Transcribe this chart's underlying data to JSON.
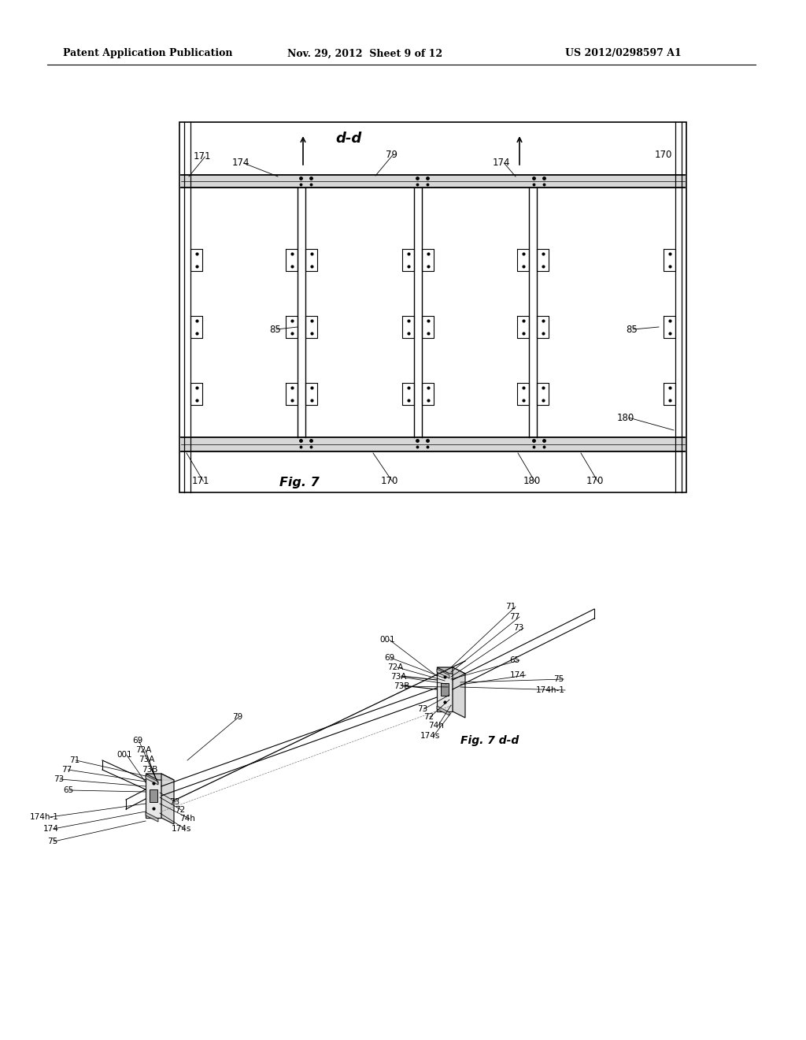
{
  "bg_color": "#ffffff",
  "header_left": "Patent Application Publication",
  "header_mid": "Nov. 29, 2012  Sheet 9 of 12",
  "header_right": "US 2012/0298597 A1",
  "fig7_label": "Fig. 7",
  "fig7dd_label": "Fig. 7 d-d",
  "section_label": "d-d",
  "label_fontsize": 8.5,
  "small_label_fontsize": 7.5,
  "fig_label_fontsize": 11.5
}
